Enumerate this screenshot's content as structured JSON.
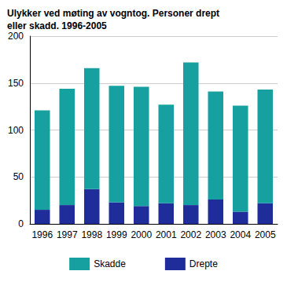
{
  "chart_data": {
    "type": "bar",
    "stacked": true,
    "title": "Ulykker ved møting av vogntog. Personer drept eller skadd. 1996-2005",
    "categories": [
      "1996",
      "1997",
      "1998",
      "1999",
      "2000",
      "2001",
      "2002",
      "2003",
      "2004",
      "2005"
    ],
    "series": [
      {
        "name": "Skadde",
        "color": "#17a0a0",
        "values": [
          106,
          124,
          129,
          124,
          127,
          105,
          152,
          115,
          113,
          121
        ]
      },
      {
        "name": "Drepte",
        "color": "#1e2d99",
        "values": [
          15,
          20,
          37,
          23,
          19,
          22,
          20,
          26,
          13,
          22
        ]
      }
    ],
    "ylim": [
      0,
      200
    ],
    "yticks": [
      0,
      50,
      100,
      150,
      200
    ],
    "grid": true,
    "legend": "bottom"
  }
}
